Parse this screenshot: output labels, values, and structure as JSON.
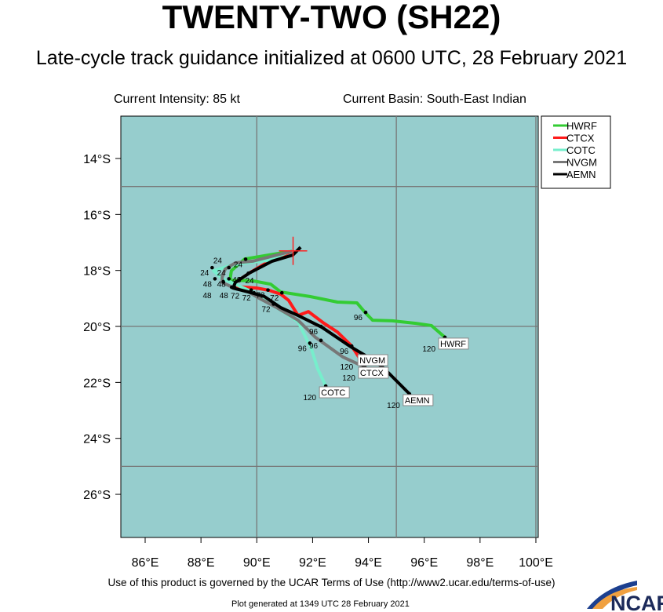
{
  "header": {
    "title": "TWENTY-TWO (SH22)",
    "subtitle": "Late-cycle track guidance initialized at 0600 UTC, 28 February 2021",
    "current_intensity": "Current Intensity: 85 kt",
    "current_basin": "Current Basin: South-East Indian"
  },
  "footer": {
    "terms": "Use of this product is governed by the UCAR Terms of Use (http://www2.ucar.edu/terms-of-use)",
    "generated": "Plot generated at 1349 UTC   28 February 2021",
    "logo_text": "NCAR"
  },
  "map": {
    "lon_range": [
      85.13,
      100.08
    ],
    "lat_range": [
      -12.49,
      -27.54
    ],
    "ocean_color": "#96cdcd",
    "grid_lons": [
      90,
      95,
      100
    ],
    "grid_lats": [
      -15,
      -20,
      -25
    ],
    "x_ticks": [
      {
        "value": 86,
        "label": "86°E"
      },
      {
        "value": 88,
        "label": "88°E"
      },
      {
        "value": 90,
        "label": "90°E"
      },
      {
        "value": 92,
        "label": "92°E"
      },
      {
        "value": 94,
        "label": "94°E"
      },
      {
        "value": 96,
        "label": "96°E"
      },
      {
        "value": 98,
        "label": "98°E"
      },
      {
        "value": 100,
        "label": "100°E"
      }
    ],
    "y_ticks": [
      {
        "value": -14,
        "label": "14°S"
      },
      {
        "value": -16,
        "label": "16°S"
      },
      {
        "value": -18,
        "label": "18°S"
      },
      {
        "value": -20,
        "label": "20°S"
      },
      {
        "value": -22,
        "label": "22°S"
      },
      {
        "value": -24,
        "label": "24°S"
      },
      {
        "value": -26,
        "label": "26°S"
      }
    ],
    "initial_position": {
      "lat": -17.3,
      "lon": 91.3,
      "color": "#ff2020"
    }
  },
  "legend": {
    "placement": "top-right",
    "items": [
      {
        "name": "HWRF",
        "color": "#33cc33"
      },
      {
        "name": "CTCX",
        "color": "#ff1a1a"
      },
      {
        "name": "COTC",
        "color": "#77eecc"
      },
      {
        "name": "NVGM",
        "color": "#777777"
      },
      {
        "name": "AEMN",
        "color": "#000000"
      }
    ]
  },
  "tracks": [
    {
      "name": "HWRF",
      "color": "#33cc33",
      "points": [
        [
          91.26,
          -17.31
        ],
        [
          89.57,
          -17.59
        ],
        [
          89.09,
          -18.01
        ],
        [
          89.04,
          -18.35
        ],
        [
          89.85,
          -18.37
        ],
        [
          90.5,
          -18.49
        ],
        [
          90.86,
          -18.77
        ],
        [
          91.9,
          -18.93
        ],
        [
          92.89,
          -19.13
        ],
        [
          93.59,
          -19.16
        ],
        [
          93.87,
          -19.49
        ],
        [
          94.15,
          -19.78
        ],
        [
          94.86,
          -19.8
        ],
        [
          95.7,
          -19.89
        ],
        [
          96.26,
          -19.97
        ],
        [
          96.74,
          -20.39
        ]
      ],
      "markers": [
        {
          "hour": "24",
          "lon": 89.6,
          "lat": -17.6
        },
        {
          "hour": "48",
          "lon": 89.0,
          "lat": -18.3
        },
        {
          "hour": "72",
          "lon": 90.9,
          "lat": -18.8
        },
        {
          "hour": "96",
          "lon": 93.9,
          "lat": -19.5
        },
        {
          "hour": "120",
          "lon": 96.74,
          "lat": -20.39
        }
      ]
    },
    {
      "name": "CTCX",
      "color": "#ff1a1a",
      "points": [
        [
          91.26,
          -17.31
        ],
        [
          90.44,
          -17.67
        ],
        [
          89.74,
          -18.09
        ],
        [
          89.23,
          -18.43
        ],
        [
          89.18,
          -18.57
        ],
        [
          90.0,
          -18.63
        ],
        [
          90.44,
          -18.71
        ],
        [
          90.86,
          -18.85
        ],
        [
          91.14,
          -19.07
        ],
        [
          91.48,
          -19.61
        ],
        [
          91.85,
          -19.47
        ],
        [
          92.41,
          -19.89
        ],
        [
          92.89,
          -20.2
        ],
        [
          93.37,
          -20.67
        ],
        [
          93.53,
          -20.9
        ],
        [
          93.87,
          -21.43
        ]
      ],
      "markers": [
        {
          "hour": "24",
          "lon": 89.7,
          "lat": -18.1
        },
        {
          "hour": "48",
          "lon": 89.2,
          "lat": -18.6
        },
        {
          "hour": "72",
          "lon": 90.4,
          "lat": -18.7
        },
        {
          "hour": "96",
          "lon": 93.4,
          "lat": -20.7
        },
        {
          "hour": "120",
          "lon": 93.87,
          "lat": -21.43
        }
      ]
    },
    {
      "name": "COTC",
      "color": "#77eecc",
      "points": [
        [
          91.26,
          -17.28
        ],
        [
          90.44,
          -17.64
        ],
        [
          89.85,
          -17.7
        ],
        [
          89.23,
          -17.78
        ],
        [
          88.45,
          -18.01
        ],
        [
          88.76,
          -18.29
        ],
        [
          89.23,
          -18.49
        ],
        [
          89.85,
          -18.77
        ],
        [
          90.27,
          -19.05
        ],
        [
          90.98,
          -19.5
        ],
        [
          91.48,
          -19.83
        ],
        [
          91.96,
          -20.81
        ],
        [
          92.18,
          -21.51
        ],
        [
          92.47,
          -22.13
        ]
      ],
      "markers": [
        {
          "hour": "24",
          "lon": 88.4,
          "lat": -17.9
        },
        {
          "hour": "48",
          "lon": 88.5,
          "lat": -18.3
        },
        {
          "hour": "72",
          "lon": 89.9,
          "lat": -18.8
        },
        {
          "hour": "96",
          "lon": 91.9,
          "lat": -20.6
        },
        {
          "hour": "120",
          "lon": 92.47,
          "lat": -22.13
        }
      ]
    },
    {
      "name": "NVGM",
      "color": "#777777",
      "points": [
        [
          91.26,
          -17.31
        ],
        [
          89.85,
          -17.67
        ],
        [
          89.23,
          -17.73
        ],
        [
          88.87,
          -17.95
        ],
        [
          88.76,
          -18.23
        ],
        [
          88.76,
          -18.43
        ],
        [
          89.23,
          -18.65
        ],
        [
          89.71,
          -18.77
        ],
        [
          90.08,
          -18.99
        ],
        [
          90.72,
          -19.33
        ],
        [
          91.48,
          -19.78
        ],
        [
          92.1,
          -20.39
        ],
        [
          93.08,
          -21.09
        ],
        [
          93.82,
          -21.43
        ]
      ],
      "markers": [
        {
          "hour": "24",
          "lon": 89.0,
          "lat": -17.9
        },
        {
          "hour": "48",
          "lon": 88.8,
          "lat": -18.4
        },
        {
          "hour": "72",
          "lon": 89.8,
          "lat": -18.7
        },
        {
          "hour": "96",
          "lon": 92.3,
          "lat": -20.5
        },
        {
          "hour": "120",
          "lon": 93.82,
          "lat": -21.43
        }
      ]
    },
    {
      "name": "AEMN",
      "color": "#000000",
      "points": [
        [
          91.57,
          -17.17
        ],
        [
          91.29,
          -17.45
        ],
        [
          90.55,
          -17.67
        ],
        [
          89.74,
          -18.09
        ],
        [
          89.23,
          -18.43
        ],
        [
          89.15,
          -18.63
        ],
        [
          89.71,
          -18.77
        ],
        [
          90.27,
          -18.93
        ],
        [
          90.86,
          -19.33
        ],
        [
          91.48,
          -19.61
        ],
        [
          92.33,
          -20.03
        ],
        [
          93.37,
          -20.73
        ],
        [
          94.21,
          -21.23
        ],
        [
          94.57,
          -21.51
        ],
        [
          95.05,
          -21.99
        ],
        [
          95.47,
          -22.41
        ]
      ],
      "markers": [
        {
          "hour": "24",
          "lon": 89.4,
          "lat": -18.3
        },
        {
          "hour": "48",
          "lon": 89.1,
          "lat": -18.6
        },
        {
          "hour": "72",
          "lon": 90.6,
          "lat": -19.2
        },
        {
          "hour": "96",
          "lon": 92.3,
          "lat": -20.0
        },
        {
          "hour": "120",
          "lon": 95.47,
          "lat": -22.41
        }
      ]
    }
  ]
}
